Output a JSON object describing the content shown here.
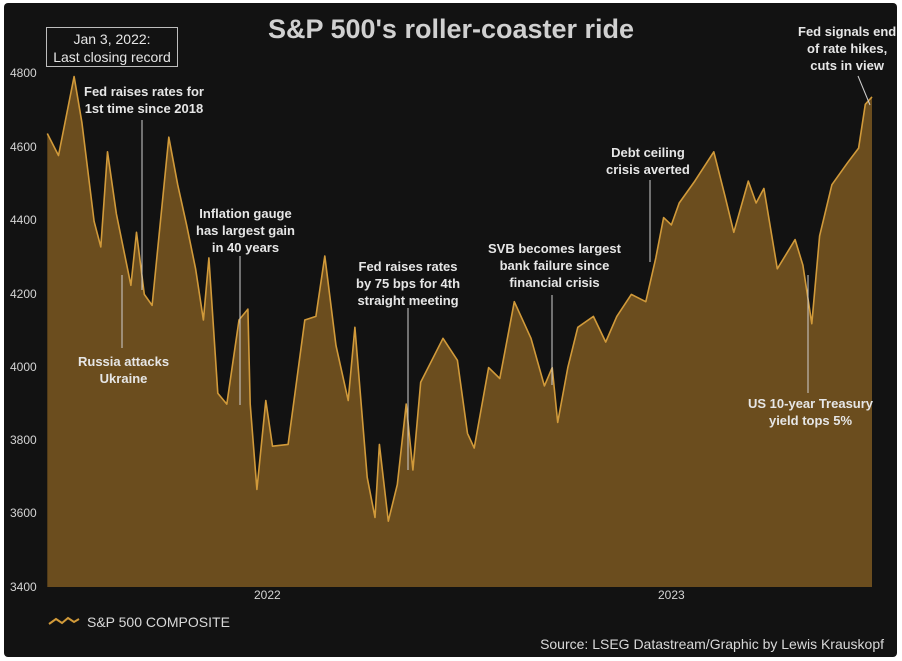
{
  "title": "S&P 500's roller-coaster ride",
  "record_box": {
    "line1": "Jan 3, 2022:",
    "line2": "Last closing record"
  },
  "annotations": {
    "fed_first_hike": [
      "Fed raises rates for",
      "1st time since 2018"
    ],
    "russia": [
      "Russia attacks",
      "Ukraine"
    ],
    "inflation": [
      "Inflation gauge",
      "has largest gain",
      "in 40 years"
    ],
    "fed_75bps": [
      "Fed raises rates",
      "by 75 bps for 4th",
      "straight meeting"
    ],
    "svb": [
      "SVB becomes largest",
      "bank failure since",
      "financial crisis"
    ],
    "debt_ceiling": [
      "Debt ceiling",
      "crisis averted"
    ],
    "treasury": [
      "US 10-year Treasury",
      "yield tops 5%"
    ],
    "fed_cuts": [
      "Fed signals end",
      "of rate hikes,",
      "cuts in view"
    ]
  },
  "legend": {
    "label": "S&P 500 COMPOSITE"
  },
  "source": "Source: LSEG Datastream/Graphic by Lewis Krauskopf",
  "colors": {
    "background": "#121212",
    "line": "#d19a3a",
    "fill": "#6b4d1e"
  },
  "chart_data": {
    "type": "area",
    "title": "S&P 500's roller-coaster ride",
    "series": [
      {
        "name": "S&P 500 COMPOSITE",
        "x": [
          "2021-12-10",
          "2021-12-20",
          "2022-01-03",
          "2022-01-10",
          "2022-01-21",
          "2022-01-27",
          "2022-02-02",
          "2022-02-10",
          "2022-02-23",
          "2022-02-28",
          "2022-03-07",
          "2022-03-14",
          "2022-03-29",
          "2022-04-06",
          "2022-04-14",
          "2022-04-22",
          "2022-04-29",
          "2022-05-04",
          "2022-05-12",
          "2022-05-20",
          "2022-05-31",
          "2022-06-08",
          "2022-06-10",
          "2022-06-16",
          "2022-06-24",
          "2022-06-30",
          "2022-07-14",
          "2022-07-29",
          "2022-08-08",
          "2022-08-16",
          "2022-08-26",
          "2022-09-06",
          "2022-09-12",
          "2022-09-23",
          "2022-09-30",
          "2022-10-04",
          "2022-10-12",
          "2022-10-20",
          "2022-10-28",
          "2022-11-03",
          "2022-11-10",
          "2022-11-30",
          "2022-12-13",
          "2022-12-22",
          "2022-12-28",
          "2023-01-10",
          "2023-01-20",
          "2023-02-02",
          "2023-02-17",
          "2023-03-01",
          "2023-03-08",
          "2023-03-13",
          "2023-03-22",
          "2023-03-31",
          "2023-04-14",
          "2023-04-25",
          "2023-05-05",
          "2023-05-18",
          "2023-05-31",
          "2023-06-09",
          "2023-06-16",
          "2023-06-23",
          "2023-06-30",
          "2023-07-14",
          "2023-07-31",
          "2023-08-10",
          "2023-08-18",
          "2023-08-31",
          "2023-09-07",
          "2023-09-14",
          "2023-09-26",
          "2023-10-12",
          "2023-10-19",
          "2023-10-27",
          "2023-11-03",
          "2023-11-14",
          "2023-11-28",
          "2023-12-08",
          "2023-12-14",
          "2023-12-20"
        ],
        "values": [
          4640,
          4580,
          4796,
          4670,
          4400,
          4330,
          4590,
          4420,
          4225,
          4370,
          4200,
          4170,
          4630,
          4500,
          4390,
          4270,
          4130,
          4300,
          3930,
          3900,
          4130,
          4160,
          3900,
          3667,
          3910,
          3785,
          3790,
          4130,
          4140,
          4305,
          4060,
          3910,
          4110,
          3700,
          3590,
          3790,
          3580,
          3680,
          3900,
          3720,
          3960,
          4080,
          4020,
          3820,
          3780,
          4000,
          3970,
          4180,
          4080,
          3950,
          4000,
          3850,
          4000,
          4110,
          4140,
          4070,
          4140,
          4200,
          4180,
          4300,
          4410,
          4390,
          4450,
          4510,
          4590,
          4470,
          4370,
          4510,
          4450,
          4490,
          4270,
          4350,
          4280,
          4120,
          4360,
          4500,
          4560,
          4600,
          4720,
          4740
        ]
      }
    ],
    "xlabel": "",
    "ylabel": "",
    "x_ticks": [
      "2022",
      "2023"
    ],
    "y_ticks": [
      3400,
      3600,
      3800,
      4000,
      4200,
      4400,
      4600,
      4800
    ],
    "ylim": [
      3400,
      4800
    ],
    "xlim": [
      "2021-12-07",
      "2023-12-20"
    ],
    "grid": false,
    "legend_position": "bottom-left"
  }
}
